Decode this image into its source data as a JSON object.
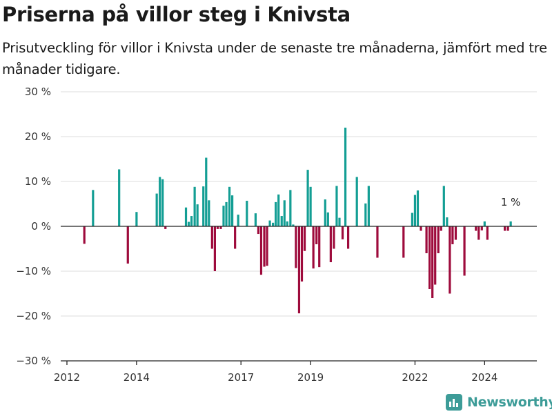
{
  "header": {
    "title": "Priserna på villor steg i Knivsta",
    "subtitle": "Prisutveckling för villor i Knivsta under de senaste tre månaderna, jämfört med tre månader tidigare."
  },
  "brand": {
    "name": "Newsworthy"
  },
  "colors": {
    "positive": "#139e94",
    "negative": "#9e0b3c",
    "grid": "#dcdcdc",
    "axis": "#222222",
    "logo": "#3d9c98"
  },
  "chart_data": {
    "type": "bar",
    "title": "Priserna på villor steg i Knivsta",
    "subtitle": "Prisutveckling för villor i Knivsta under de senaste tre månaderna, jämfört med tre månader tidigare.",
    "xlabel": "",
    "ylabel": "",
    "ylim": [
      -30,
      30
    ],
    "yticks": [
      -30,
      -20,
      -10,
      0,
      10,
      20,
      30
    ],
    "ytick_labels": [
      "−30 %",
      "−20 %",
      "−10 %",
      "0 %",
      "10 %",
      "20 %",
      "30 %"
    ],
    "xlim": [
      2012.0,
      2025.5
    ],
    "xticks": [
      2012,
      2014,
      2017,
      2019,
      2022,
      2024
    ],
    "xtick_labels": [
      "2012",
      "2014",
      "2017",
      "2019",
      "2022",
      "2024"
    ],
    "grid": true,
    "legend": "none",
    "annotation": {
      "text": "1 %",
      "x": 2024.75,
      "y": 1.1
    },
    "x": [
      2012.5,
      2012.75,
      2013.5,
      2013.75,
      2014.0,
      2014.58,
      2014.67,
      2014.75,
      2014.83,
      2015.42,
      2015.5,
      2015.58,
      2015.67,
      2015.75,
      2015.92,
      2016.0,
      2016.08,
      2016.17,
      2016.25,
      2016.33,
      2016.42,
      2016.5,
      2016.58,
      2016.67,
      2016.75,
      2016.83,
      2016.92,
      2017.17,
      2017.42,
      2017.5,
      2017.58,
      2017.67,
      2017.75,
      2017.83,
      2017.92,
      2018.0,
      2018.08,
      2018.17,
      2018.25,
      2018.33,
      2018.42,
      2018.5,
      2018.58,
      2018.67,
      2018.75,
      2018.83,
      2018.92,
      2019.0,
      2019.08,
      2019.17,
      2019.25,
      2019.42,
      2019.5,
      2019.58,
      2019.67,
      2019.75,
      2019.83,
      2019.92,
      2020.0,
      2020.08,
      2020.33,
      2020.58,
      2020.67,
      2020.92,
      2021.67,
      2021.92,
      2022.0,
      2022.08,
      2022.17,
      2022.33,
      2022.42,
      2022.5,
      2022.58,
      2022.67,
      2022.75,
      2022.83,
      2022.92,
      2023.0,
      2023.08,
      2023.17,
      2023.42,
      2023.75,
      2023.83,
      2023.92,
      2024.0,
      2024.08,
      2024.58,
      2024.67,
      2024.75
    ],
    "values": [
      -3.9,
      8.1,
      12.7,
      -8.3,
      3.2,
      7.3,
      11.0,
      10.5,
      -0.6,
      4.2,
      1.0,
      2.3,
      8.8,
      4.9,
      8.9,
      15.3,
      5.8,
      -5.0,
      -10.0,
      -0.6,
      -0.6,
      4.6,
      5.4,
      8.8,
      6.9,
      -5.0,
      2.6,
      5.7,
      2.9,
      -1.7,
      -10.8,
      -9.0,
      -8.8,
      1.3,
      0.8,
      5.4,
      7.1,
      2.3,
      5.8,
      1.1,
      8.1,
      0.4,
      -9.3,
      -19.4,
      -12.3,
      -5.5,
      12.6,
      8.8,
      -9.4,
      -4.0,
      -9.1,
      6.0,
      3.1,
      -8.0,
      -5.0,
      9.0,
      1.9,
      -2.9,
      22.0,
      -5.0,
      11.0,
      5.1,
      9.0,
      -7.0,
      -7.0,
      3.0,
      7.0,
      8.0,
      -1.0,
      -6.0,
      -14.0,
      -16.0,
      -13.0,
      -6.0,
      -1.0,
      9.0,
      2.0,
      -15.0,
      -4.0,
      -3.0,
      -11.0,
      -1.0,
      -3.0,
      -0.9,
      1.1,
      -3.0,
      -1.0,
      -1.0,
      1.1
    ]
  }
}
